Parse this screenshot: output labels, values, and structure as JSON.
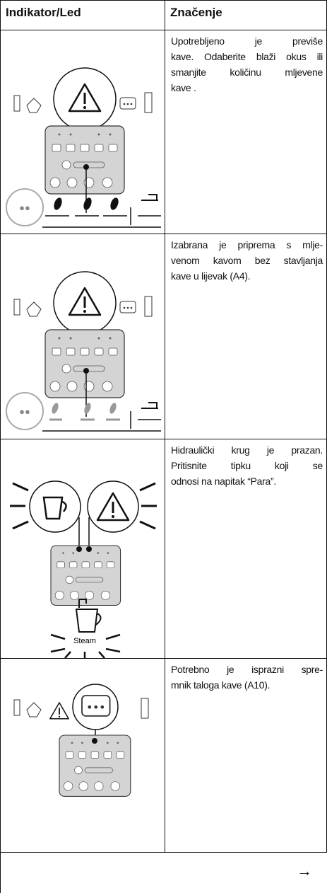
{
  "table": {
    "header": [
      "Indikator/Led",
      "Značenje"
    ],
    "rows": [
      {
        "meaning": [
          "Upotrebljeno je previše",
          "kave. Odaberite blaži okus ili",
          "smanjite količinu mljevene",
          "kave ."
        ]
      },
      {
        "meaning": [
          "Izabrana je priprema s mlje-",
          "venom kavom bez stavljanja",
          "kave u lijevak (A4)."
        ]
      },
      {
        "meaning": [
          "Hidraulički krug je prazan.",
          "Pritisnite tipku koji se",
          "odnosi na napitak “Para”."
        ],
        "illustration_label": "Steam"
      },
      {
        "meaning": [
          "Potrebno je isprazni spre-",
          "mnik taloga kave (A10)."
        ]
      }
    ],
    "footer": "→"
  }
}
